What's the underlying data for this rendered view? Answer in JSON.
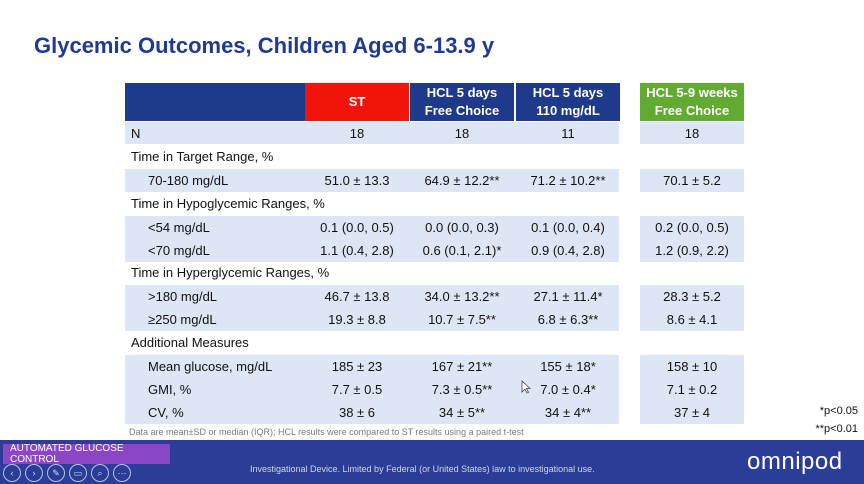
{
  "slide": {
    "title": "Glycemic Outcomes, Children Aged 6-13.9 y",
    "columns": [
      {
        "label": "",
        "color": "#1f3a8a"
      },
      {
        "label": "ST",
        "color": "#f2140b"
      },
      {
        "label": "HCL 5 days\nFree Choice",
        "color": "#1f3a8a"
      },
      {
        "label": "HCL 5 days\n110 mg/dL",
        "color": "#1f3a8a"
      },
      {
        "label": "HCL 5-9 weeks\nFree Choice",
        "color": "#62ab33"
      }
    ],
    "n_row": {
      "label": "N",
      "values": [
        "18",
        "18",
        "11",
        "18"
      ]
    },
    "sections": [
      {
        "title": "Time in Target Range, %",
        "rows": [
          {
            "label": "70-180 mg/dL",
            "values": [
              "51.0 ± 13.3",
              "64.9 ± 12.2**",
              "71.2 ± 10.2**",
              "70.1 ± 5.2"
            ]
          }
        ]
      },
      {
        "title": "Time in Hypoglycemic Ranges, %",
        "rows": [
          {
            "label": "<54 mg/dL",
            "values": [
              "0.1 (0.0, 0.5)",
              "0.0 (0.0, 0.3)",
              "0.1 (0.0, 0.4)",
              "0.2 (0.0, 0.5)"
            ]
          },
          {
            "label": "<70 mg/dL",
            "values": [
              "1.1 (0.4, 2.8)",
              "0.6 (0.1, 2.1)*",
              "0.9 (0.4, 2.8)",
              "1.2 (0.9, 2.2)"
            ]
          }
        ]
      },
      {
        "title": "Time in Hyperglycemic Ranges, %",
        "rows": [
          {
            "label": ">180 mg/dL",
            "values": [
              "46.7 ± 13.8",
              "34.0 ± 13.2**",
              "27.1 ± 11.4*",
              "28.3 ± 5.2"
            ]
          },
          {
            "label": "≥250 mg/dL",
            "values": [
              "19.3 ± 8.8",
              "10.7 ± 7.5**",
              "6.8 ± 6.3**",
              "8.6 ± 4.1"
            ]
          }
        ]
      },
      {
        "title": "Additional Measures",
        "rows": [
          {
            "label": "Mean glucose, mg/dL",
            "values": [
              "185 ± 23",
              "167 ± 21**",
              "155 ± 18*",
              "158 ± 10"
            ]
          },
          {
            "label": "GMI, %",
            "values": [
              "7.7 ± 0.5",
              "7.3 ± 0.5**",
              "7.0 ± 0.4*",
              "7.1 ± 0.2"
            ]
          },
          {
            "label": "CV, %",
            "values": [
              "38 ± 6",
              "34 ± 5**",
              "34 ± 4**",
              "37 ± 4"
            ]
          }
        ]
      }
    ],
    "footnote": "Data are mean±SD or median (IQR); HCL results were compared to ST results using a paired t-test",
    "pvalues": [
      "*p<0.05",
      "**p<0.01"
    ]
  },
  "footer": {
    "tag": "AUTOMATED GLUCOSE CONTROL",
    "legal": "Investigational Device. Limited by Federal (or United States) law to investigational use.",
    "logo": "omnipod",
    "controls": [
      "previous",
      "next",
      "pen",
      "slides",
      "zoom",
      "more"
    ],
    "control_icons": [
      "‹",
      "›",
      "✎",
      "▭",
      "⌕",
      "⋯"
    ]
  }
}
